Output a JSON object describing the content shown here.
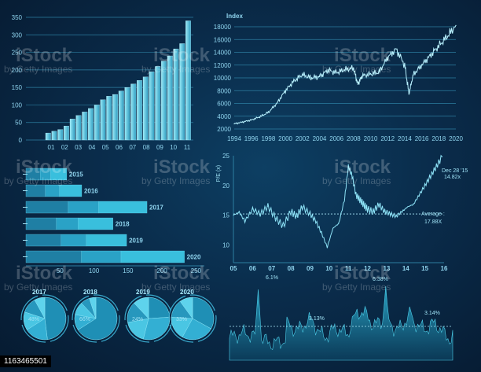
{
  "chart_data": [
    {
      "type": "bar",
      "categories": [
        "",
        "",
        "",
        "",
        "",
        "",
        "",
        "",
        "",
        "",
        "",
        "",
        "",
        "",
        "",
        "",
        "",
        "",
        "",
        "",
        "",
        "",
        "",
        ""
      ],
      "x_ticks": [
        "01",
        "02",
        "03",
        "04",
        "05",
        "06",
        "07",
        "08",
        "09",
        "10",
        "11"
      ],
      "values": [
        20,
        25,
        30,
        40,
        60,
        70,
        80,
        90,
        100,
        115,
        125,
        130,
        140,
        150,
        160,
        170,
        180,
        195,
        210,
        225,
        240,
        260,
        275,
        340
      ],
      "ylim": [
        0,
        350
      ],
      "y_ticks": [
        0,
        50,
        100,
        150,
        200,
        250,
        300,
        350
      ],
      "grid": true
    },
    {
      "type": "line",
      "ylabel": "Index",
      "x_ticks": [
        "1994",
        "1996",
        "1998",
        "2000",
        "2002",
        "2004",
        "2006",
        "2008",
        "2010",
        "2012",
        "2014",
        "2016",
        "2018",
        "2020"
      ],
      "y_ticks": [
        2000,
        4000,
        6000,
        8000,
        10000,
        12000,
        14000,
        16000,
        18000
      ],
      "ylim": [
        2000,
        18000
      ],
      "xlim": [
        1994,
        2020
      ],
      "x": [
        1994,
        1995,
        1996,
        1997,
        1998,
        1999,
        2000,
        2001,
        2002,
        2003,
        2004,
        2005,
        2006,
        2007,
        2008,
        2008.5,
        2009,
        2010,
        2011,
        2012,
        2013,
        2014,
        2014.5,
        2015,
        2016,
        2017,
        2018,
        2019,
        2020
      ],
      "values": [
        2800,
        3100,
        3400,
        3900,
        4600,
        6000,
        8000,
        9500,
        10500,
        10000,
        10200,
        11200,
        10800,
        11300,
        11500,
        9000,
        10300,
        10600,
        10900,
        13200,
        14500,
        12000,
        7500,
        10500,
        12000,
        13500,
        15000,
        16500,
        18200
      ],
      "grid": true
    },
    {
      "type": "line",
      "ylabel": "P/E (x)",
      "x_ticks": [
        "05",
        "06",
        "07",
        "08",
        "09",
        "10",
        "11",
        "12",
        "13",
        "14",
        "15",
        "16"
      ],
      "y_ticks": [
        10,
        15,
        20,
        25
      ],
      "ylim": [
        7,
        25
      ],
      "x": [
        5,
        5.3,
        5.6,
        6,
        6.4,
        6.8,
        7.2,
        7.6,
        8,
        8.3,
        8.6,
        9,
        9.3,
        9.6,
        9.9,
        10.2,
        10.5,
        10.8,
        11,
        11.2,
        11.4,
        11.6,
        11.8,
        12,
        12.3,
        12.6,
        12.9,
        13.2,
        13.5,
        13.8,
        14.1,
        14.4,
        14.7,
        15,
        15.3,
        15.6,
        15.9
      ],
      "values": [
        15,
        15.5,
        14,
        16,
        15.2,
        16.5,
        14.5,
        13.2,
        15.6,
        14.8,
        16.4,
        15.2,
        14,
        12,
        9.6,
        12.8,
        13.6,
        17.6,
        23.2,
        21.6,
        18.4,
        17.6,
        16.8,
        16,
        15.6,
        16.8,
        15.6,
        15.2,
        14.8,
        15.6,
        16.4,
        16.8,
        18.4,
        20,
        21.6,
        23.2,
        24.8
      ],
      "reference_line": 15.2,
      "annotations": [
        "Dec 28 '15",
        "14.82x",
        "Average :",
        "17.88X"
      ]
    },
    {
      "type": "bar",
      "orientation": "horizontal",
      "categories": [
        "2015",
        "2016",
        "2017",
        "2018",
        "2019",
        "2020"
      ],
      "values": [
        60,
        82,
        178,
        128,
        148,
        233
      ],
      "x_ticks": [
        "50",
        "100",
        "150",
        "200",
        "250"
      ],
      "xlim": [
        0,
        260
      ]
    },
    {
      "type": "pie",
      "charts": [
        {
          "year": "2017",
          "label": "48%",
          "values": [
            48,
            18,
            14,
            12,
            8
          ]
        },
        {
          "year": "2018",
          "label": "66%",
          "values": [
            66,
            12,
            10,
            7,
            5
          ]
        },
        {
          "year": "2019",
          "label": "24%",
          "values": [
            24,
            30,
            18,
            16,
            12
          ]
        },
        {
          "year": "2020",
          "label": "33%",
          "values": [
            33,
            25,
            18,
            14,
            10
          ]
        }
      ]
    },
    {
      "type": "area",
      "annotations": [
        "6.1%",
        "3.13%",
        "6.38%",
        "3.14%"
      ]
    }
  ],
  "watermark": {
    "text": "iStock",
    "credit": "by Getty Images",
    "id": "1163465501"
  },
  "colors": {
    "accent": "#3fc6e6",
    "bar": "#6dd3ea",
    "grid": "#2c7ea0"
  }
}
